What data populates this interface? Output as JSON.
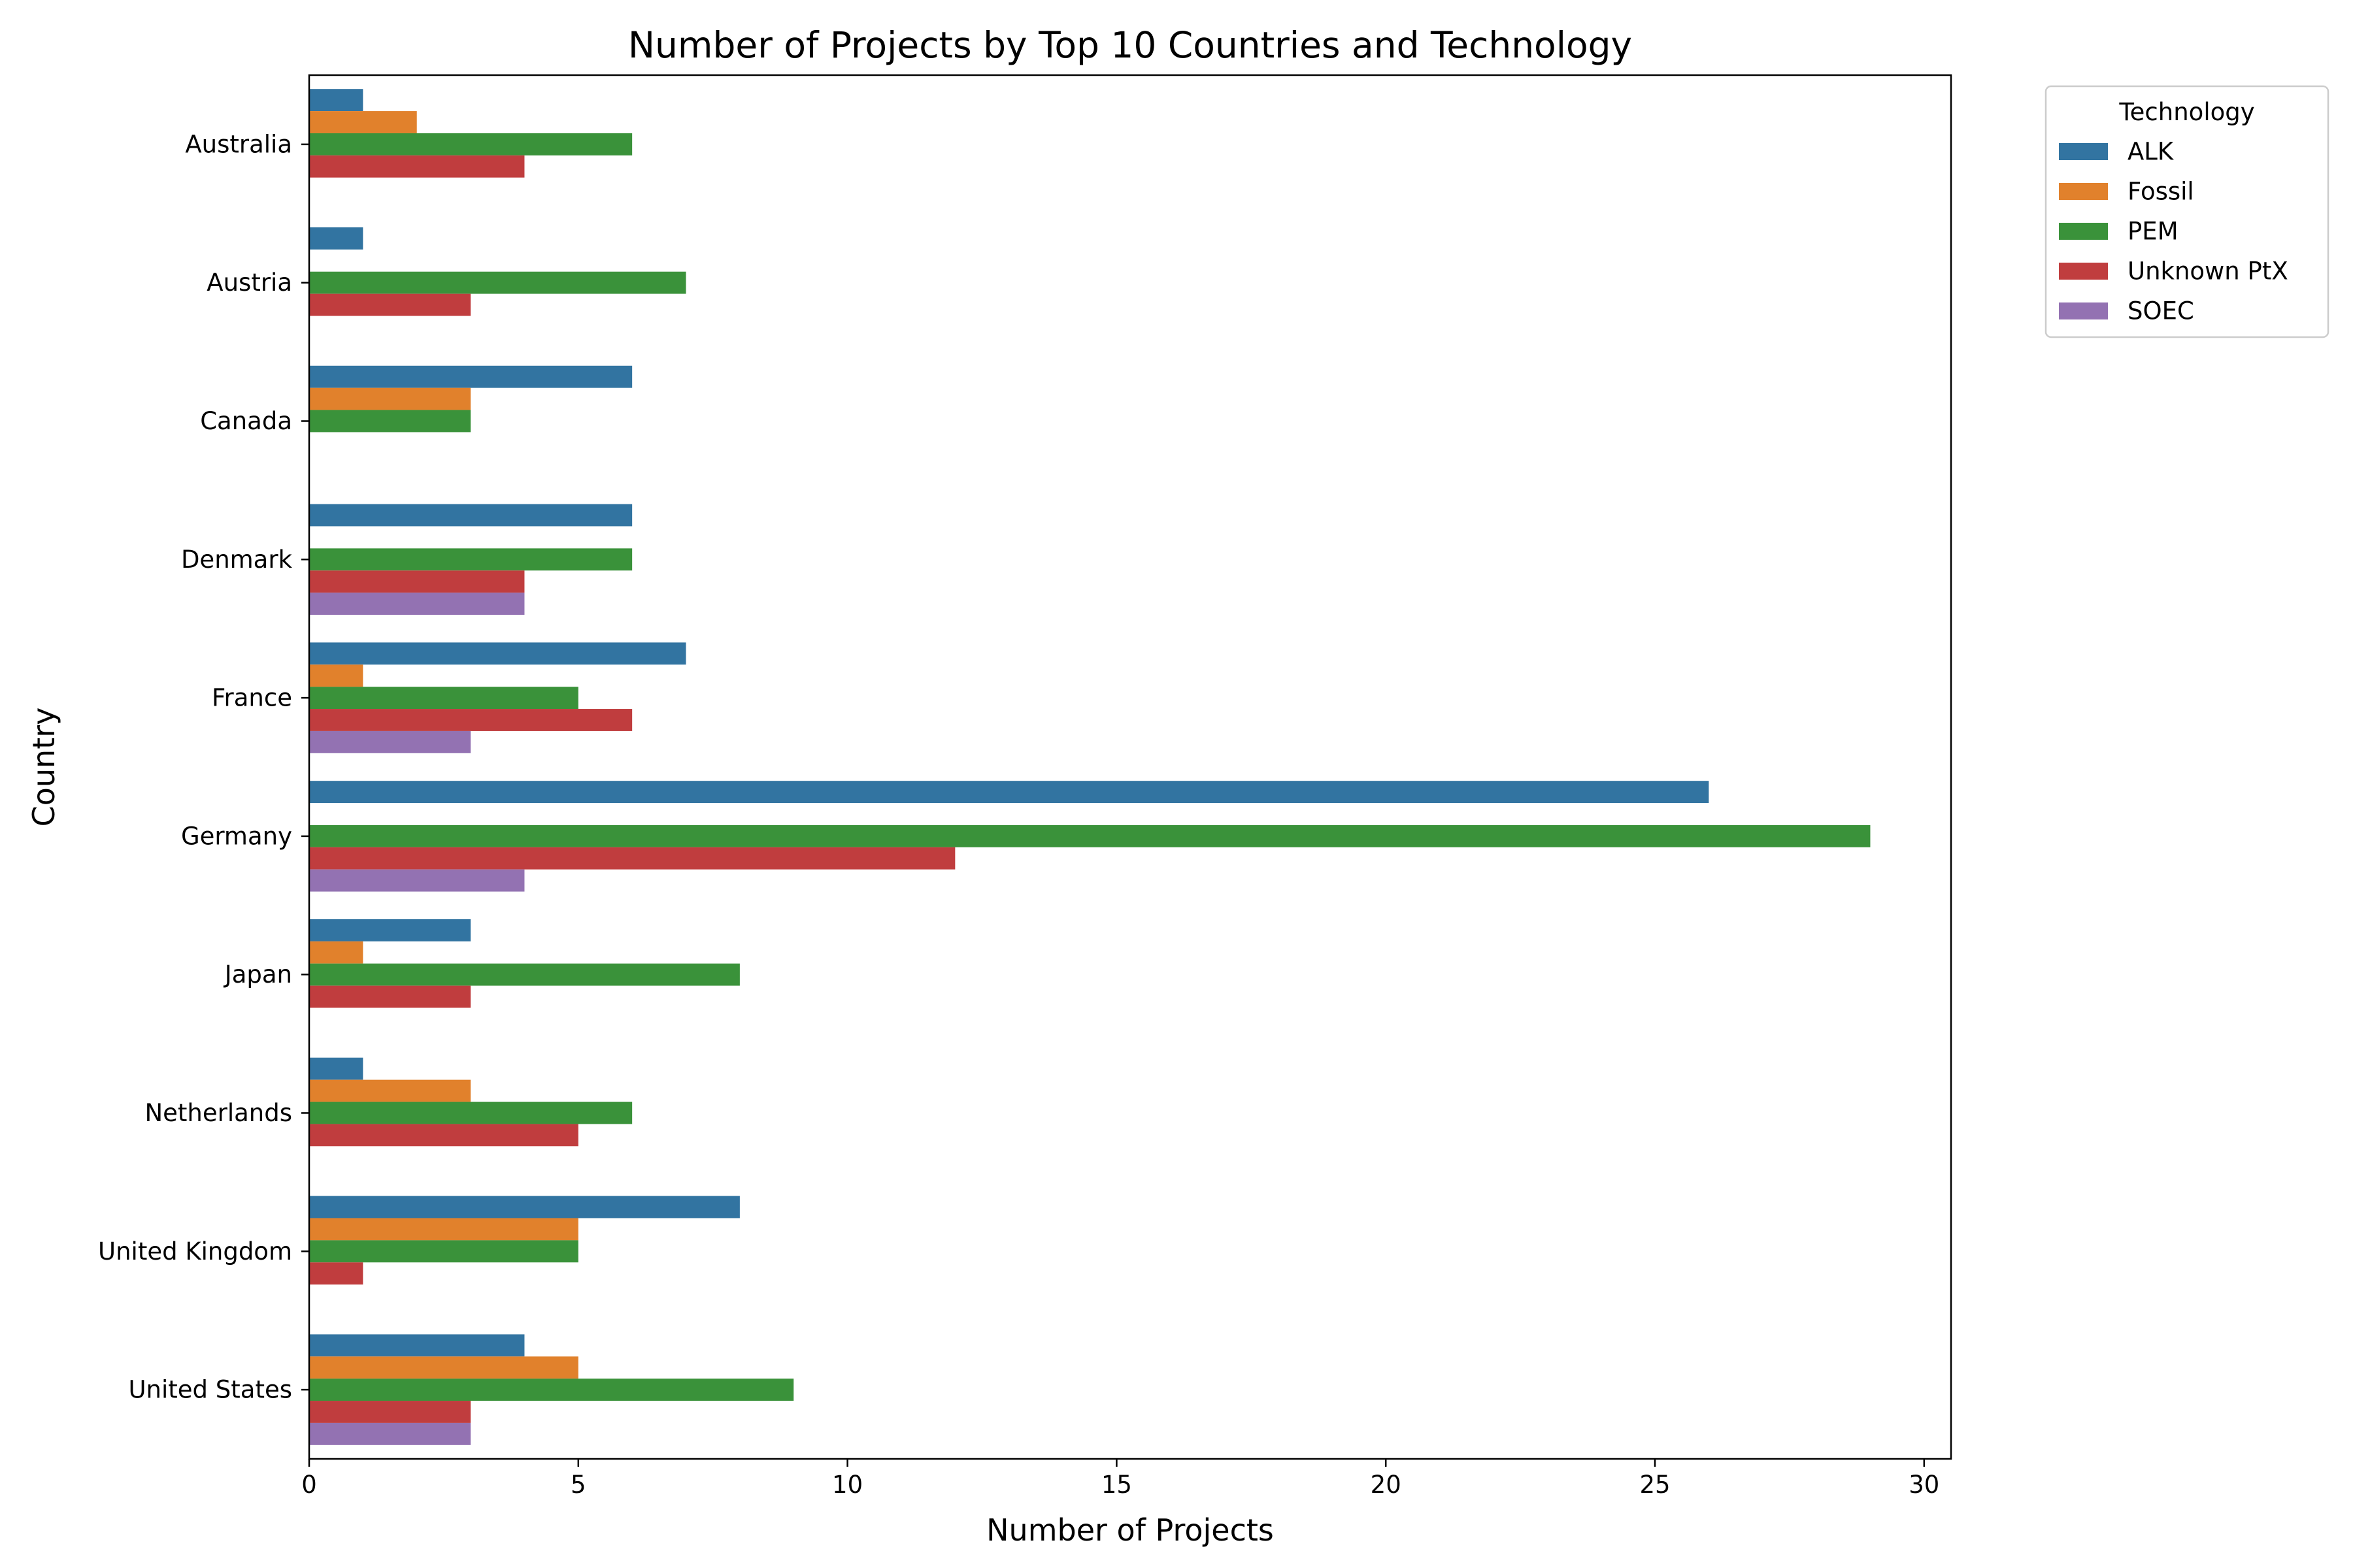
{
  "chart_data": {
    "type": "bar",
    "orientation": "horizontal",
    "title": "Number of Projects by Top 10 Countries and Technology",
    "xlabel": "Number of Projects",
    "ylabel": "Country",
    "xlim": [
      0,
      30.5
    ],
    "xticks": [
      0,
      5,
      10,
      15,
      20,
      25,
      30
    ],
    "grid": false,
    "legend_title": "Technology",
    "legend_position": "outside top-right",
    "categories": [
      "Australia",
      "Austria",
      "Canada",
      "Denmark",
      "France",
      "Germany",
      "Japan",
      "Netherlands",
      "United Kingdom",
      "United States"
    ],
    "series": [
      {
        "name": "ALK",
        "color": "#3274a1",
        "values": [
          1,
          1,
          6,
          6,
          7,
          26,
          3,
          1,
          8,
          4
        ]
      },
      {
        "name": "Fossil",
        "color": "#e1812c",
        "values": [
          2,
          0,
          3,
          0,
          1,
          0,
          1,
          3,
          5,
          5
        ]
      },
      {
        "name": "PEM",
        "color": "#3a923a",
        "values": [
          6,
          7,
          3,
          6,
          5,
          29,
          8,
          6,
          5,
          9
        ]
      },
      {
        "name": "Unknown PtX",
        "color": "#c03d3e",
        "values": [
          4,
          3,
          0,
          4,
          6,
          12,
          3,
          5,
          1,
          3
        ]
      },
      {
        "name": "SOEC",
        "color": "#9372b2",
        "values": [
          0,
          0,
          0,
          4,
          3,
          4,
          0,
          0,
          0,
          3
        ]
      }
    ]
  }
}
